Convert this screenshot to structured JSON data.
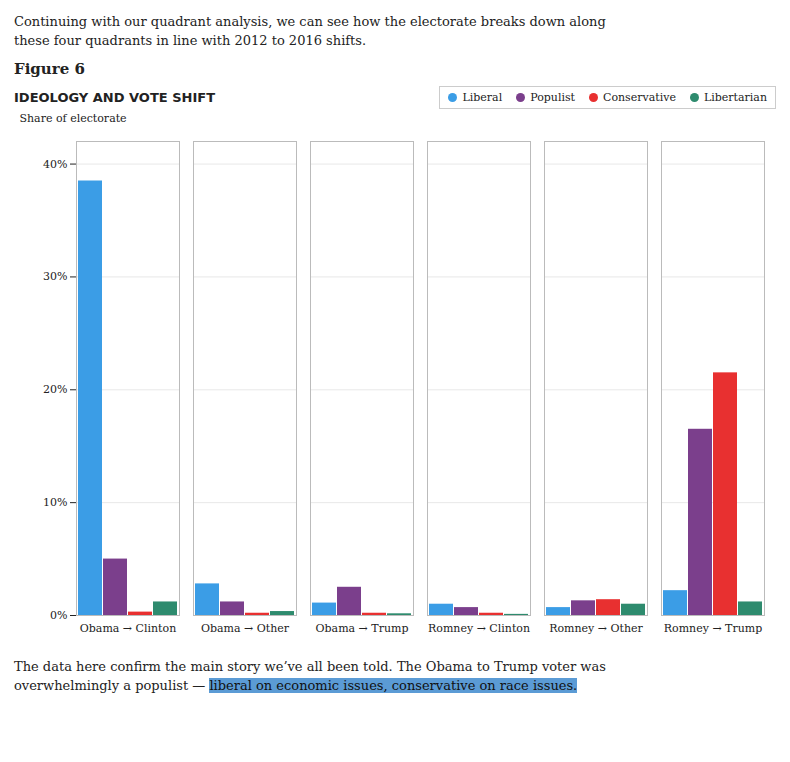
{
  "chart_data": {
    "type": "bar",
    "header_text": [
      "Continuing with our quadrant analysis, we can see how the electorate breaks down along",
      "these four quadrants in line with 2012 to 2016 shifts."
    ],
    "figure_label": "Figure 6",
    "title": "IDEOLOGY AND VOTE SHIFT",
    "ylabel": "Share of electorate",
    "categories": [
      "Obama → Clinton",
      "Obama → Other",
      "Obama → Trump",
      "Romney → Clinton",
      "Romney → Other",
      "Romney → Trump"
    ],
    "series": [
      {
        "name": "Liberal",
        "color": "#3b9de6",
        "values": [
          38.5,
          2.8,
          1.1,
          1.0,
          0.7,
          2.2
        ]
      },
      {
        "name": "Populist",
        "color": "#7b3f8c",
        "values": [
          5.0,
          1.2,
          2.5,
          0.7,
          1.3,
          16.5
        ]
      },
      {
        "name": "Conservative",
        "color": "#e83030",
        "values": [
          0.3,
          0.2,
          0.2,
          0.2,
          1.4,
          21.5
        ]
      },
      {
        "name": "Libertarian",
        "color": "#2e8b6e",
        "values": [
          1.2,
          0.35,
          0.15,
          0.1,
          1.0,
          1.2
        ]
      }
    ],
    "ylim": [
      0,
      42
    ],
    "yticks": [
      {
        "value": 0,
        "label": "0%"
      },
      {
        "value": 10,
        "label": "10%"
      },
      {
        "value": 20,
        "label": "20%"
      },
      {
        "value": 30,
        "label": "30%"
      },
      {
        "value": 40,
        "label": "40%"
      }
    ],
    "grid": true,
    "legend": "upper right",
    "footer_text": [
      "The data here confirm the main story we’ve all been told. The Obama to Trump voter was",
      "overwhelmingly a populist — "
    ],
    "footer_highlight": "liberal on economic issues, conservative on race issues.",
    "highlight_color": "#5b9bd5"
  }
}
